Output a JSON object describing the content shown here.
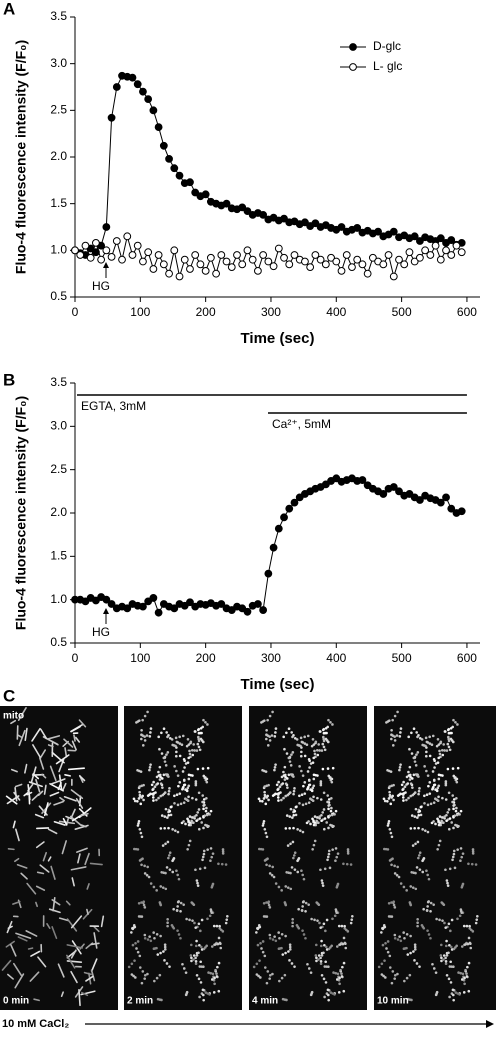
{
  "chart_data": [
    {
      "type": "line",
      "panel": "A",
      "xlabel": "Time (sec)",
      "ylabel": "Fluo-4 fluorescence intensity (F/F₀)",
      "annotations": [
        "HG"
      ],
      "legend": "upper right",
      "xlim": [
        0,
        620
      ],
      "xticks": [
        0,
        100,
        200,
        300,
        400,
        500,
        600
      ],
      "ylim": [
        0.5,
        3.5
      ],
      "yticks": [
        0.5,
        {
          "value": 1,
          "label": "1.0"
        },
        1.5,
        {
          "value": 2,
          "label": "2.0"
        },
        2.5,
        {
          "value": 3,
          "label": "3.0"
        },
        3.5
      ],
      "x": [
        0,
        8,
        16,
        24,
        32,
        40,
        48,
        56,
        64,
        72,
        80,
        88,
        96,
        104,
        112,
        120,
        128,
        136,
        144,
        152,
        160,
        168,
        176,
        184,
        192,
        200,
        208,
        216,
        224,
        232,
        240,
        248,
        256,
        264,
        272,
        280,
        288,
        296,
        304,
        312,
        320,
        328,
        336,
        344,
        352,
        360,
        368,
        376,
        384,
        392,
        400,
        408,
        416,
        424,
        432,
        440,
        448,
        456,
        464,
        472,
        480,
        488,
        496,
        504,
        512,
        520,
        528,
        536,
        544,
        552,
        560,
        568,
        576,
        584,
        592
      ],
      "series": [
        {
          "name": "D-glc",
          "color": "#000000",
          "marker_fill": "#000000",
          "values": [
            1.0,
            0.97,
            0.95,
            1.02,
            0.98,
            1.05,
            1.25,
            2.42,
            2.75,
            2.87,
            2.86,
            2.85,
            2.78,
            2.7,
            2.62,
            2.5,
            2.32,
            2.12,
            1.98,
            1.88,
            1.8,
            1.72,
            1.73,
            1.62,
            1.58,
            1.6,
            1.52,
            1.5,
            1.48,
            1.5,
            1.45,
            1.44,
            1.46,
            1.42,
            1.38,
            1.4,
            1.38,
            1.33,
            1.35,
            1.32,
            1.34,
            1.3,
            1.31,
            1.28,
            1.3,
            1.26,
            1.29,
            1.25,
            1.27,
            1.24,
            1.22,
            1.25,
            1.2,
            1.22,
            1.24,
            1.19,
            1.21,
            1.18,
            1.2,
            1.15,
            1.17,
            1.2,
            1.14,
            1.16,
            1.13,
            1.15,
            1.1,
            1.14,
            1.12,
            1.1,
            1.13,
            1.08,
            1.11,
            1.06,
            1.08
          ]
        },
        {
          "name": "L- glc",
          "color": "#000000",
          "marker_fill": "#ffffff",
          "values": [
            1.0,
            0.95,
            1.05,
            0.92,
            1.08,
            0.9,
            1.0,
            0.93,
            1.1,
            0.9,
            1.15,
            0.95,
            1.05,
            0.88,
            0.98,
            0.8,
            0.95,
            0.85,
            0.75,
            1.0,
            0.72,
            0.9,
            0.8,
            0.95,
            0.85,
            0.78,
            0.92,
            0.75,
            0.95,
            0.88,
            0.82,
            0.95,
            0.85,
            1.0,
            0.9,
            0.78,
            0.95,
            0.88,
            0.83,
            1.02,
            0.92,
            0.85,
            0.95,
            0.9,
            0.88,
            0.82,
            0.95,
            0.9,
            0.85,
            0.92,
            0.88,
            0.78,
            0.95,
            0.82,
            0.9,
            0.85,
            0.75,
            0.92,
            0.88,
            0.85,
            0.95,
            0.72,
            0.9,
            0.85,
            0.98,
            0.88,
            0.92,
            1.0,
            0.95,
            1.05,
            0.9,
            1.0,
            0.95,
            1.05,
            0.98
          ]
        }
      ]
    },
    {
      "type": "line",
      "panel": "B",
      "xlabel": "Time (sec)",
      "ylabel": "Fluo-4 fluorescence intensity (F/F₀)",
      "annotations": [
        "HG",
        "EGTA, 3mM",
        "Ca²⁺, 5mM"
      ],
      "xlim": [
        0,
        620
      ],
      "xticks": [
        0,
        100,
        200,
        300,
        400,
        500,
        600
      ],
      "ylim": [
        0.5,
        3.5
      ],
      "yticks": [
        0.5,
        {
          "value": 1,
          "label": "1.0"
        },
        1.5,
        {
          "value": 2,
          "label": "2.0"
        },
        2.5,
        {
          "value": 3,
          "label": "3.0"
        },
        3.5
      ],
      "x": [
        0,
        8,
        16,
        24,
        32,
        40,
        48,
        56,
        64,
        72,
        80,
        88,
        96,
        104,
        112,
        120,
        128,
        136,
        144,
        152,
        160,
        168,
        176,
        184,
        192,
        200,
        208,
        216,
        224,
        232,
        240,
        248,
        256,
        264,
        272,
        280,
        288,
        296,
        304,
        312,
        320,
        328,
        336,
        344,
        352,
        360,
        368,
        376,
        384,
        392,
        400,
        408,
        416,
        424,
        432,
        440,
        448,
        456,
        464,
        472,
        480,
        488,
        496,
        504,
        512,
        520,
        528,
        536,
        544,
        552,
        560,
        568,
        576,
        584,
        592
      ],
      "series": [
        {
          "color": "#000000",
          "marker_fill": "#000000",
          "values": [
            1.0,
            1.0,
            0.98,
            1.02,
            0.99,
            1.03,
            1.0,
            0.95,
            0.9,
            0.92,
            0.9,
            0.95,
            0.93,
            0.92,
            0.98,
            1.02,
            0.85,
            0.95,
            0.92,
            0.9,
            0.95,
            0.93,
            0.97,
            0.92,
            0.95,
            0.94,
            0.96,
            0.93,
            0.95,
            0.9,
            0.88,
            0.92,
            0.9,
            0.86,
            0.93,
            0.95,
            0.88,
            1.3,
            1.6,
            1.82,
            1.95,
            2.05,
            2.12,
            2.18,
            2.22,
            2.25,
            2.28,
            2.3,
            2.33,
            2.37,
            2.4,
            2.36,
            2.38,
            2.4,
            2.37,
            2.38,
            2.32,
            2.28,
            2.25,
            2.22,
            2.28,
            2.3,
            2.25,
            2.2,
            2.22,
            2.18,
            2.15,
            2.2,
            2.17,
            2.15,
            2.12,
            2.18,
            2.05,
            2.0,
            2.02
          ]
        }
      ]
    }
  ],
  "panel_c": {
    "panel": "C",
    "channel": "mito",
    "times": [
      "0 min",
      "2 min",
      "4 min",
      "10 min"
    ],
    "footer": "10 mM CaCl₂"
  }
}
